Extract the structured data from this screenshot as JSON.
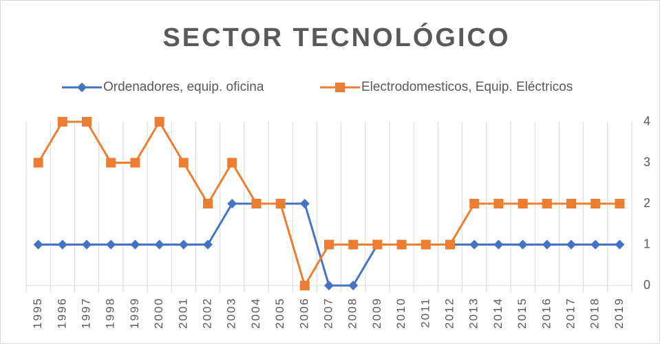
{
  "chart_data": {
    "type": "line",
    "title": "SECTOR TECNOLÓGICO",
    "categories": [
      "1995",
      "1996",
      "1997",
      "1998",
      "1999",
      "2000",
      "2001",
      "2002",
      "2003",
      "2004",
      "2005",
      "2006",
      "2007",
      "2008",
      "2009",
      "2010",
      "2011",
      "2012",
      "2013",
      "2014",
      "2015",
      "2016",
      "2017",
      "2018",
      "2019"
    ],
    "series": [
      {
        "name": "Ordenadores, equip. oficina",
        "color": "#4472c4",
        "marker": "diamond",
        "values": [
          1,
          1,
          1,
          1,
          1,
          1,
          1,
          1,
          2,
          2,
          2,
          2,
          0,
          0,
          1,
          1,
          1,
          1,
          1,
          1,
          1,
          1,
          1,
          1,
          1
        ]
      },
      {
        "name": "Electrodomesticos, Equip. Eléctricos",
        "color": "#ed7d31",
        "marker": "square",
        "values": [
          3,
          4,
          4,
          3,
          3,
          4,
          3,
          2,
          3,
          2,
          2,
          0,
          1,
          1,
          1,
          1,
          1,
          1,
          2,
          2,
          2,
          2,
          2,
          2,
          2
        ]
      }
    ],
    "ylim": [
      0,
      4
    ],
    "yticks": [
      0,
      1,
      2,
      3,
      4
    ],
    "y_axis_side": "right",
    "legend": "top",
    "grid": true
  }
}
